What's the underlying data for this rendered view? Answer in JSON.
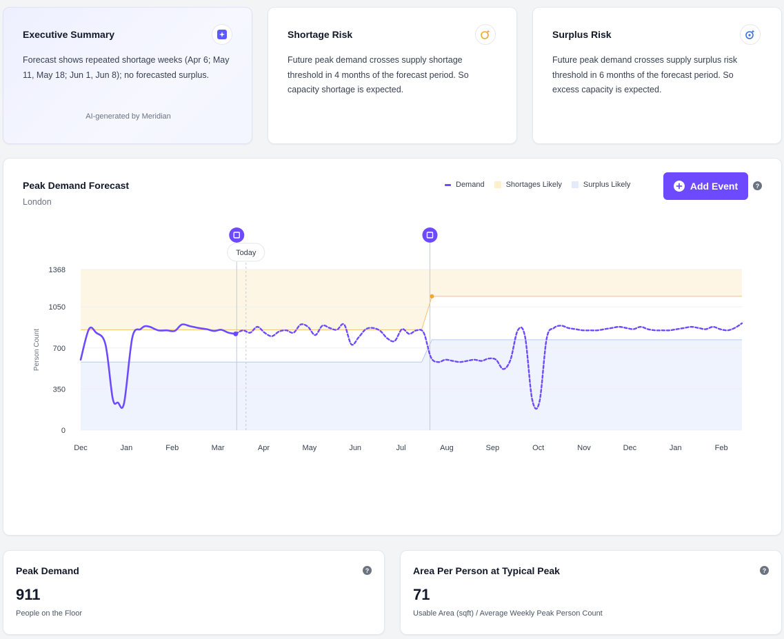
{
  "summary_cards": {
    "executive": {
      "title": "Executive Summary",
      "body": "Forecast shows repeated shortage weeks (Apr 6; May 11, May 18; Jun 1, Jun 8); no forecasted surplus.",
      "footer": "AI-generated by Meridian",
      "icon": "sparkle-icon"
    },
    "shortage": {
      "title": "Shortage Risk",
      "body": "Future peak demand crosses supply shortage threshold in 4 months of the forecast period. So capacity shortage is expected.",
      "icon": "sparkle-orange-icon"
    },
    "surplus": {
      "title": "Surplus Risk",
      "body": "Future peak demand crosses supply surplus risk threshold in 6 months of the forecast period. So excess capacity is expected.",
      "icon": "sparkle-blue-icon"
    }
  },
  "forecast": {
    "title": "Peak Demand Forecast",
    "subtitle": "London",
    "legend": {
      "demand": "Demand",
      "shortage": "Shortages Likely",
      "surplus": "Surplus Likely"
    },
    "add_event_label": "Add Event",
    "today_label": "Today",
    "colors": {
      "demand": "#6d4aff",
      "shortage_fill": "#fef6e4",
      "shortage_line": "#f5c26b",
      "surplus_fill": "#eef3fd",
      "surplus_line": "#b7caf0",
      "event_marker": "#6d4aff"
    }
  },
  "chart_data": {
    "type": "line",
    "ylabel": "Person Count",
    "ylim": [
      0,
      1368
    ],
    "yticks": [
      0,
      350,
      700,
      1050,
      1368
    ],
    "xticks": [
      "Dec",
      "Jan",
      "Feb",
      "Mar",
      "Apr",
      "May",
      "Jun",
      "Jul",
      "Aug",
      "Sep",
      "Oct",
      "Nov",
      "Dec",
      "Jan",
      "Feb"
    ],
    "x_range_weeks": [
      0,
      64
    ],
    "today_week": 16,
    "event_weeks": [
      15.1,
      33.8
    ],
    "shortage_threshold": {
      "x": [
        0,
        33,
        34,
        64
      ],
      "y": [
        855,
        855,
        1140,
        1140
      ],
      "top": 1368
    },
    "surplus_threshold": {
      "x": [
        0,
        33,
        34,
        64
      ],
      "y": [
        580,
        580,
        770,
        770
      ]
    },
    "series": [
      {
        "name": "Demand",
        "style": "actual",
        "x": [
          0,
          0.8,
          1.5,
          2.4,
          3.1,
          3.6,
          4.2,
          5.0,
          5.8,
          6.2,
          6.7,
          7.5,
          8.3,
          9.1,
          9.8,
          10.6,
          11.4,
          12.2,
          12.9,
          13.6,
          14.3,
          15.0
        ],
        "y": [
          600,
          860,
          830,
          730,
          270,
          235,
          230,
          790,
          860,
          885,
          880,
          850,
          850,
          845,
          900,
          885,
          870,
          860,
          845,
          855,
          830,
          820
        ]
      },
      {
        "name": "Demand",
        "style": "forecast",
        "x": [
          15.0,
          15.7,
          16.4,
          17.1,
          17.8,
          18.5,
          19.2,
          19.9,
          20.6,
          21.3,
          22.0,
          22.7,
          23.4,
          24.1,
          24.8,
          25.5,
          26.2,
          26.9,
          27.6,
          28.3,
          29.0,
          29.7,
          30.4,
          31.1,
          31.8,
          32.5,
          33.2,
          33.9,
          34.6,
          35.3,
          36.0,
          36.7,
          37.4,
          38.1,
          38.8,
          39.5,
          40.2,
          40.9,
          41.6,
          42.3,
          43.0,
          43.7,
          44.4,
          45.1,
          45.8,
          46.5,
          47.2,
          47.9,
          48.6,
          49.3,
          50.0,
          50.7,
          51.4,
          52.1,
          52.8,
          53.5,
          54.2,
          54.9,
          55.6,
          56.3,
          57.0,
          57.7,
          58.4,
          59.1,
          59.8,
          60.5,
          61.2,
          61.9,
          62.6,
          63.3,
          64.0
        ],
        "y": [
          820,
          850,
          830,
          880,
          830,
          800,
          840,
          850,
          830,
          900,
          880,
          810,
          890,
          870,
          855,
          900,
          730,
          790,
          860,
          870,
          845,
          780,
          760,
          860,
          820,
          850,
          830,
          620,
          580,
          600,
          590,
          580,
          590,
          600,
          590,
          610,
          600,
          520,
          600,
          850,
          800,
          260,
          240,
          780,
          870,
          890,
          870,
          860,
          850,
          850,
          850,
          860,
          870,
          880,
          870,
          860,
          880,
          860,
          850,
          850,
          850,
          860,
          870,
          880,
          870,
          860,
          880,
          860,
          850,
          870,
          910
        ]
      }
    ]
  },
  "metrics": {
    "peak_demand": {
      "title": "Peak Demand",
      "value": "911",
      "sub": "People on the Floor"
    },
    "area_per_person": {
      "title": "Area Per Person at Typical Peak",
      "value": "71",
      "sub": "Usable Area (sqft) / Average Weekly Peak Person Count"
    }
  }
}
